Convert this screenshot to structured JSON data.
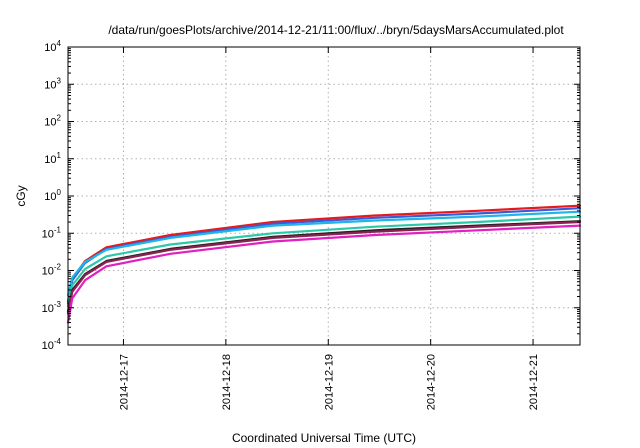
{
  "chart_data": {
    "type": "line",
    "title": "/data/run/goesPlots/archive/2014-12-21/11:00/flux/../bryn/5daysMarsAccumulated.plot",
    "xlabel": "Coordinated Universal Time (UTC)",
    "ylabel": "cGy",
    "yscale": "log",
    "x_range": [
      "2014-12-16 11:00",
      "2014-12-21 11:00"
    ],
    "ylim": [
      0.0001,
      10000
    ],
    "y_ticks": [
      {
        "value": 0.0001,
        "base": "10",
        "exp": "-4"
      },
      {
        "value": 0.001,
        "base": "10",
        "exp": "-3"
      },
      {
        "value": 0.01,
        "base": "10",
        "exp": "-2"
      },
      {
        "value": 0.1,
        "base": "10",
        "exp": "-1"
      },
      {
        "value": 1,
        "base": "10",
        "exp": "0"
      },
      {
        "value": 10,
        "base": "10",
        "exp": "1"
      },
      {
        "value": 100,
        "base": "10",
        "exp": "2"
      },
      {
        "value": 1000,
        "base": "10",
        "exp": "3"
      },
      {
        "value": 10000,
        "base": "10",
        "exp": "4"
      }
    ],
    "x_ticks": [
      "2014-12-17",
      "2014-12-18",
      "2014-12-19",
      "2014-12-20",
      "2014-12-21"
    ],
    "grid": true,
    "x": [
      "2014-12-16 11:00",
      "2014-12-16 12:00",
      "2014-12-16 15:00",
      "2014-12-16 20:00",
      "2014-12-17 11:00",
      "2014-12-18 11:00",
      "2014-12-19 11:00",
      "2014-12-20 11:00",
      "2014-12-21 11:00"
    ],
    "series": [
      {
        "color": "#e41a1c",
        "values": [
          0.0015,
          0.006,
          0.018,
          0.042,
          0.09,
          0.2,
          0.3,
          0.4,
          0.55
        ]
      },
      {
        "color": "#3b5bd6",
        "values": [
          0.0013,
          0.0055,
          0.016,
          0.038,
          0.08,
          0.18,
          0.26,
          0.34,
          0.47
        ]
      },
      {
        "color": "#1fb5e8",
        "values": [
          0.0022,
          0.0065,
          0.017,
          0.036,
          0.075,
          0.16,
          0.22,
          0.28,
          0.38
        ]
      },
      {
        "color": "#2cc9a8",
        "values": [
          0.0011,
          0.004,
          0.011,
          0.024,
          0.05,
          0.1,
          0.15,
          0.2,
          0.28
        ]
      },
      {
        "color": "#222222",
        "values": [
          0.0008,
          0.003,
          0.008,
          0.018,
          0.038,
          0.08,
          0.12,
          0.16,
          0.21
        ]
      },
      {
        "color": "#8b2252",
        "values": [
          0.0007,
          0.0027,
          0.0075,
          0.017,
          0.036,
          0.075,
          0.11,
          0.15,
          0.2
        ]
      },
      {
        "color": "#e020c0",
        "values": [
          0.0004,
          0.0018,
          0.0055,
          0.013,
          0.028,
          0.06,
          0.09,
          0.12,
          0.16
        ]
      }
    ]
  }
}
